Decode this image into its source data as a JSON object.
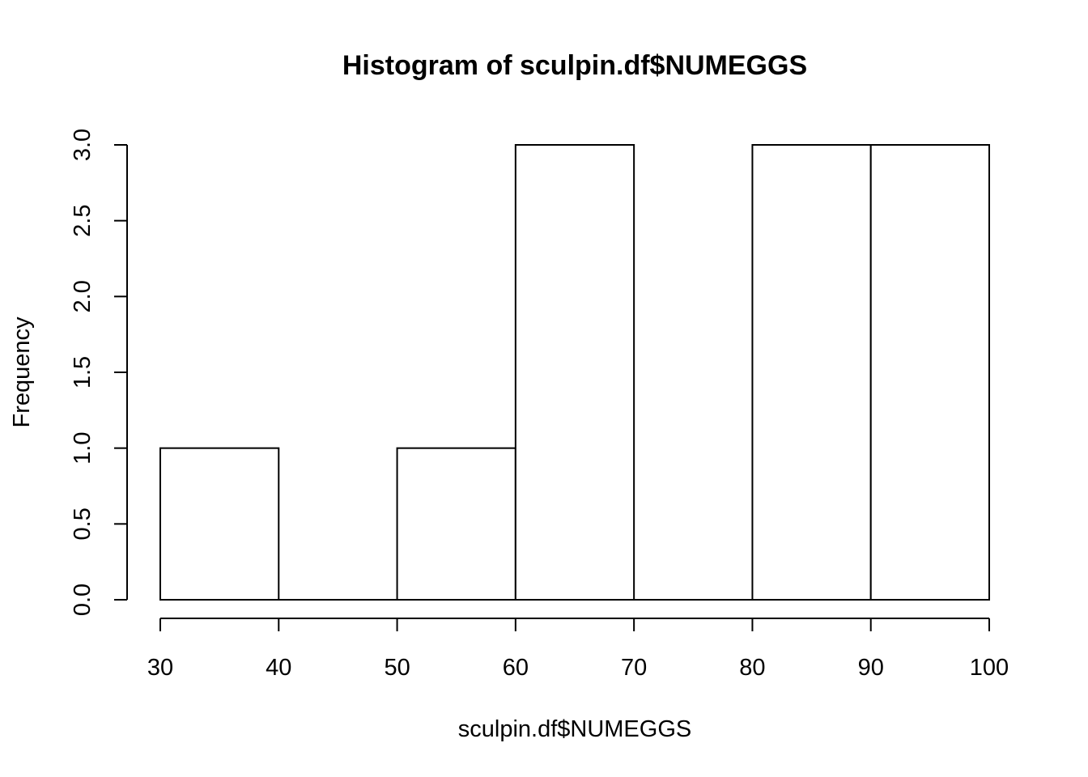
{
  "chart_data": {
    "type": "bar",
    "title": "Histogram of sculpin.df$NUMEGGS",
    "xlabel": "sculpin.df$NUMEGGS",
    "ylabel": "Frequency",
    "bins": [
      {
        "from": 30,
        "to": 40,
        "count": 1
      },
      {
        "from": 40,
        "to": 50,
        "count": 0
      },
      {
        "from": 50,
        "to": 60,
        "count": 1
      },
      {
        "from": 60,
        "to": 70,
        "count": 3
      },
      {
        "from": 70,
        "to": 80,
        "count": 0
      },
      {
        "from": 80,
        "to": 90,
        "count": 3
      },
      {
        "from": 90,
        "to": 100,
        "count": 3
      }
    ],
    "xlim": [
      30,
      100
    ],
    "ylim": [
      0,
      3
    ],
    "x_ticks": [
      "30",
      "40",
      "50",
      "60",
      "70",
      "80",
      "90",
      "100"
    ],
    "y_ticks": [
      "0.0",
      "0.5",
      "1.0",
      "1.5",
      "2.0",
      "2.5",
      "3.0"
    ],
    "grid": false,
    "bar_fill": "#ffffff",
    "bar_stroke": "#000000"
  }
}
